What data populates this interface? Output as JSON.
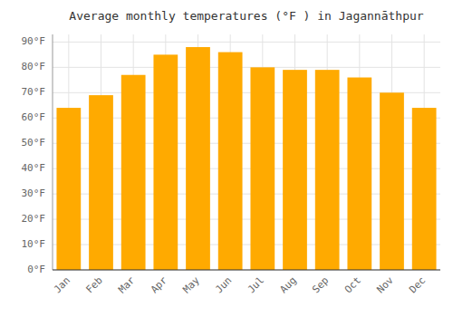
{
  "chart_data": {
    "type": "bar",
    "title": "Average monthly temperatures (°F ) in Jagannāthpur",
    "categories": [
      "Jan",
      "Feb",
      "Mar",
      "Apr",
      "May",
      "Jun",
      "Jul",
      "Aug",
      "Sep",
      "Oct",
      "Nov",
      "Dec"
    ],
    "values": [
      64,
      69,
      77,
      85,
      88,
      86,
      80,
      79,
      79,
      76,
      70,
      64
    ],
    "color": "#FFAA00",
    "ylim": [
      0,
      93
    ],
    "yticks": [
      {
        "value": 0,
        "label": "0°F"
      },
      {
        "value": 10,
        "label": "10°F"
      },
      {
        "value": 20,
        "label": "20°F"
      },
      {
        "value": 30,
        "label": "30°F"
      },
      {
        "value": 40,
        "label": "40°F"
      },
      {
        "value": 50,
        "label": "50°F"
      },
      {
        "value": 60,
        "label": "60°F"
      },
      {
        "value": 70,
        "label": "70°F"
      },
      {
        "value": 80,
        "label": "80°F"
      },
      {
        "value": 90,
        "label": "90°F"
      }
    ],
    "grid": true
  }
}
